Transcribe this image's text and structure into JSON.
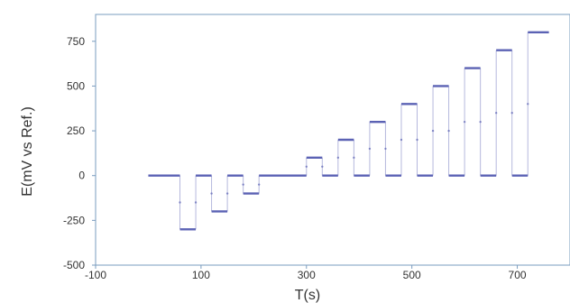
{
  "chart_data": {
    "type": "line",
    "title": "",
    "xlabel": "T(s)",
    "ylabel": "E(mV vs Ref.)",
    "xlim": [
      -100,
      800
    ],
    "ylim": [
      -500,
      900
    ],
    "x_ticks": [
      -100,
      100,
      300,
      500,
      700
    ],
    "x_tick_labels": [
      "-100",
      "100",
      "300",
      "500",
      "700"
    ],
    "y_ticks": [
      -500,
      -250,
      0,
      250,
      500,
      750
    ],
    "y_tick_labels": [
      "-500",
      "-250",
      "0",
      "250",
      "500",
      "750"
    ],
    "grid": false,
    "series_color": "#5b62b4",
    "series": [
      {
        "segments": [
          {
            "x_start": 0,
            "x_end": 60,
            "y": 0
          },
          {
            "x_start": 60,
            "x_end": 90,
            "y": -300
          },
          {
            "x_start": 90,
            "x_end": 120,
            "y": 0
          },
          {
            "x_start": 120,
            "x_end": 150,
            "y": -200
          },
          {
            "x_start": 150,
            "x_end": 180,
            "y": 0
          },
          {
            "x_start": 180,
            "x_end": 210,
            "y": -100
          },
          {
            "x_start": 210,
            "x_end": 300,
            "y": 0
          },
          {
            "x_start": 300,
            "x_end": 330,
            "y": 100
          },
          {
            "x_start": 330,
            "x_end": 360,
            "y": 0
          },
          {
            "x_start": 360,
            "x_end": 390,
            "y": 200
          },
          {
            "x_start": 390,
            "x_end": 420,
            "y": 0
          },
          {
            "x_start": 420,
            "x_end": 450,
            "y": 300
          },
          {
            "x_start": 450,
            "x_end": 480,
            "y": 0
          },
          {
            "x_start": 480,
            "x_end": 510,
            "y": 400
          },
          {
            "x_start": 510,
            "x_end": 540,
            "y": 0
          },
          {
            "x_start": 540,
            "x_end": 570,
            "y": 500
          },
          {
            "x_start": 570,
            "x_end": 600,
            "y": 0
          },
          {
            "x_start": 600,
            "x_end": 630,
            "y": 600
          },
          {
            "x_start": 630,
            "x_end": 660,
            "y": 0
          },
          {
            "x_start": 660,
            "x_end": 690,
            "y": 700
          },
          {
            "x_start": 690,
            "x_end": 720,
            "y": 0
          },
          {
            "x_start": 720,
            "x_end": 760,
            "y": 800
          }
        ]
      }
    ]
  }
}
